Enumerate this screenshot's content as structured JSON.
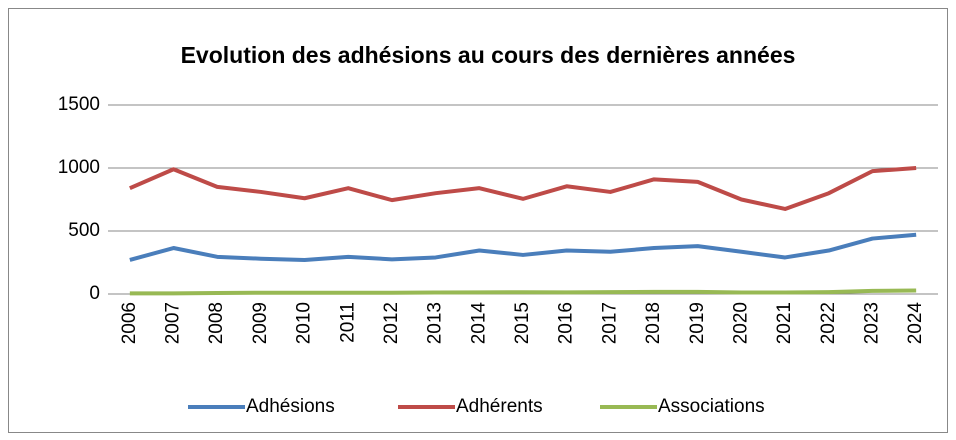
{
  "chart_data": {
    "type": "line",
    "title": "Evolution des adhésions au cours des dernières années",
    "categories": [
      "2006",
      "2007",
      "2008",
      "2009",
      "2010",
      "2011",
      "2012",
      "2013",
      "2014",
      "2015",
      "2016",
      "2017",
      "2018",
      "2019",
      "2020",
      "2021",
      "2022",
      "2023",
      "2024"
    ],
    "series": [
      {
        "name": "Adhésions",
        "color": "#4a7ebb",
        "values": [
          270,
          365,
          295,
          280,
          270,
          295,
          275,
          290,
          345,
          310,
          345,
          335,
          365,
          380,
          335,
          290,
          345,
          440,
          470
        ]
      },
      {
        "name": "Adhérents",
        "color": "#be4b48",
        "values": [
          840,
          990,
          850,
          810,
          760,
          840,
          745,
          800,
          840,
          755,
          855,
          810,
          910,
          890,
          750,
          675,
          800,
          975,
          1000
        ]
      },
      {
        "name": "Associations",
        "color": "#98b954",
        "values": [
          5,
          5,
          8,
          10,
          10,
          10,
          10,
          12,
          13,
          14,
          13,
          15,
          17,
          17,
          12,
          12,
          15,
          25,
          28
        ]
      }
    ],
    "ylim": [
      0,
      1500
    ],
    "yticks": [
      0,
      500,
      1000,
      1500
    ],
    "grid": true,
    "legend": "bottom"
  }
}
